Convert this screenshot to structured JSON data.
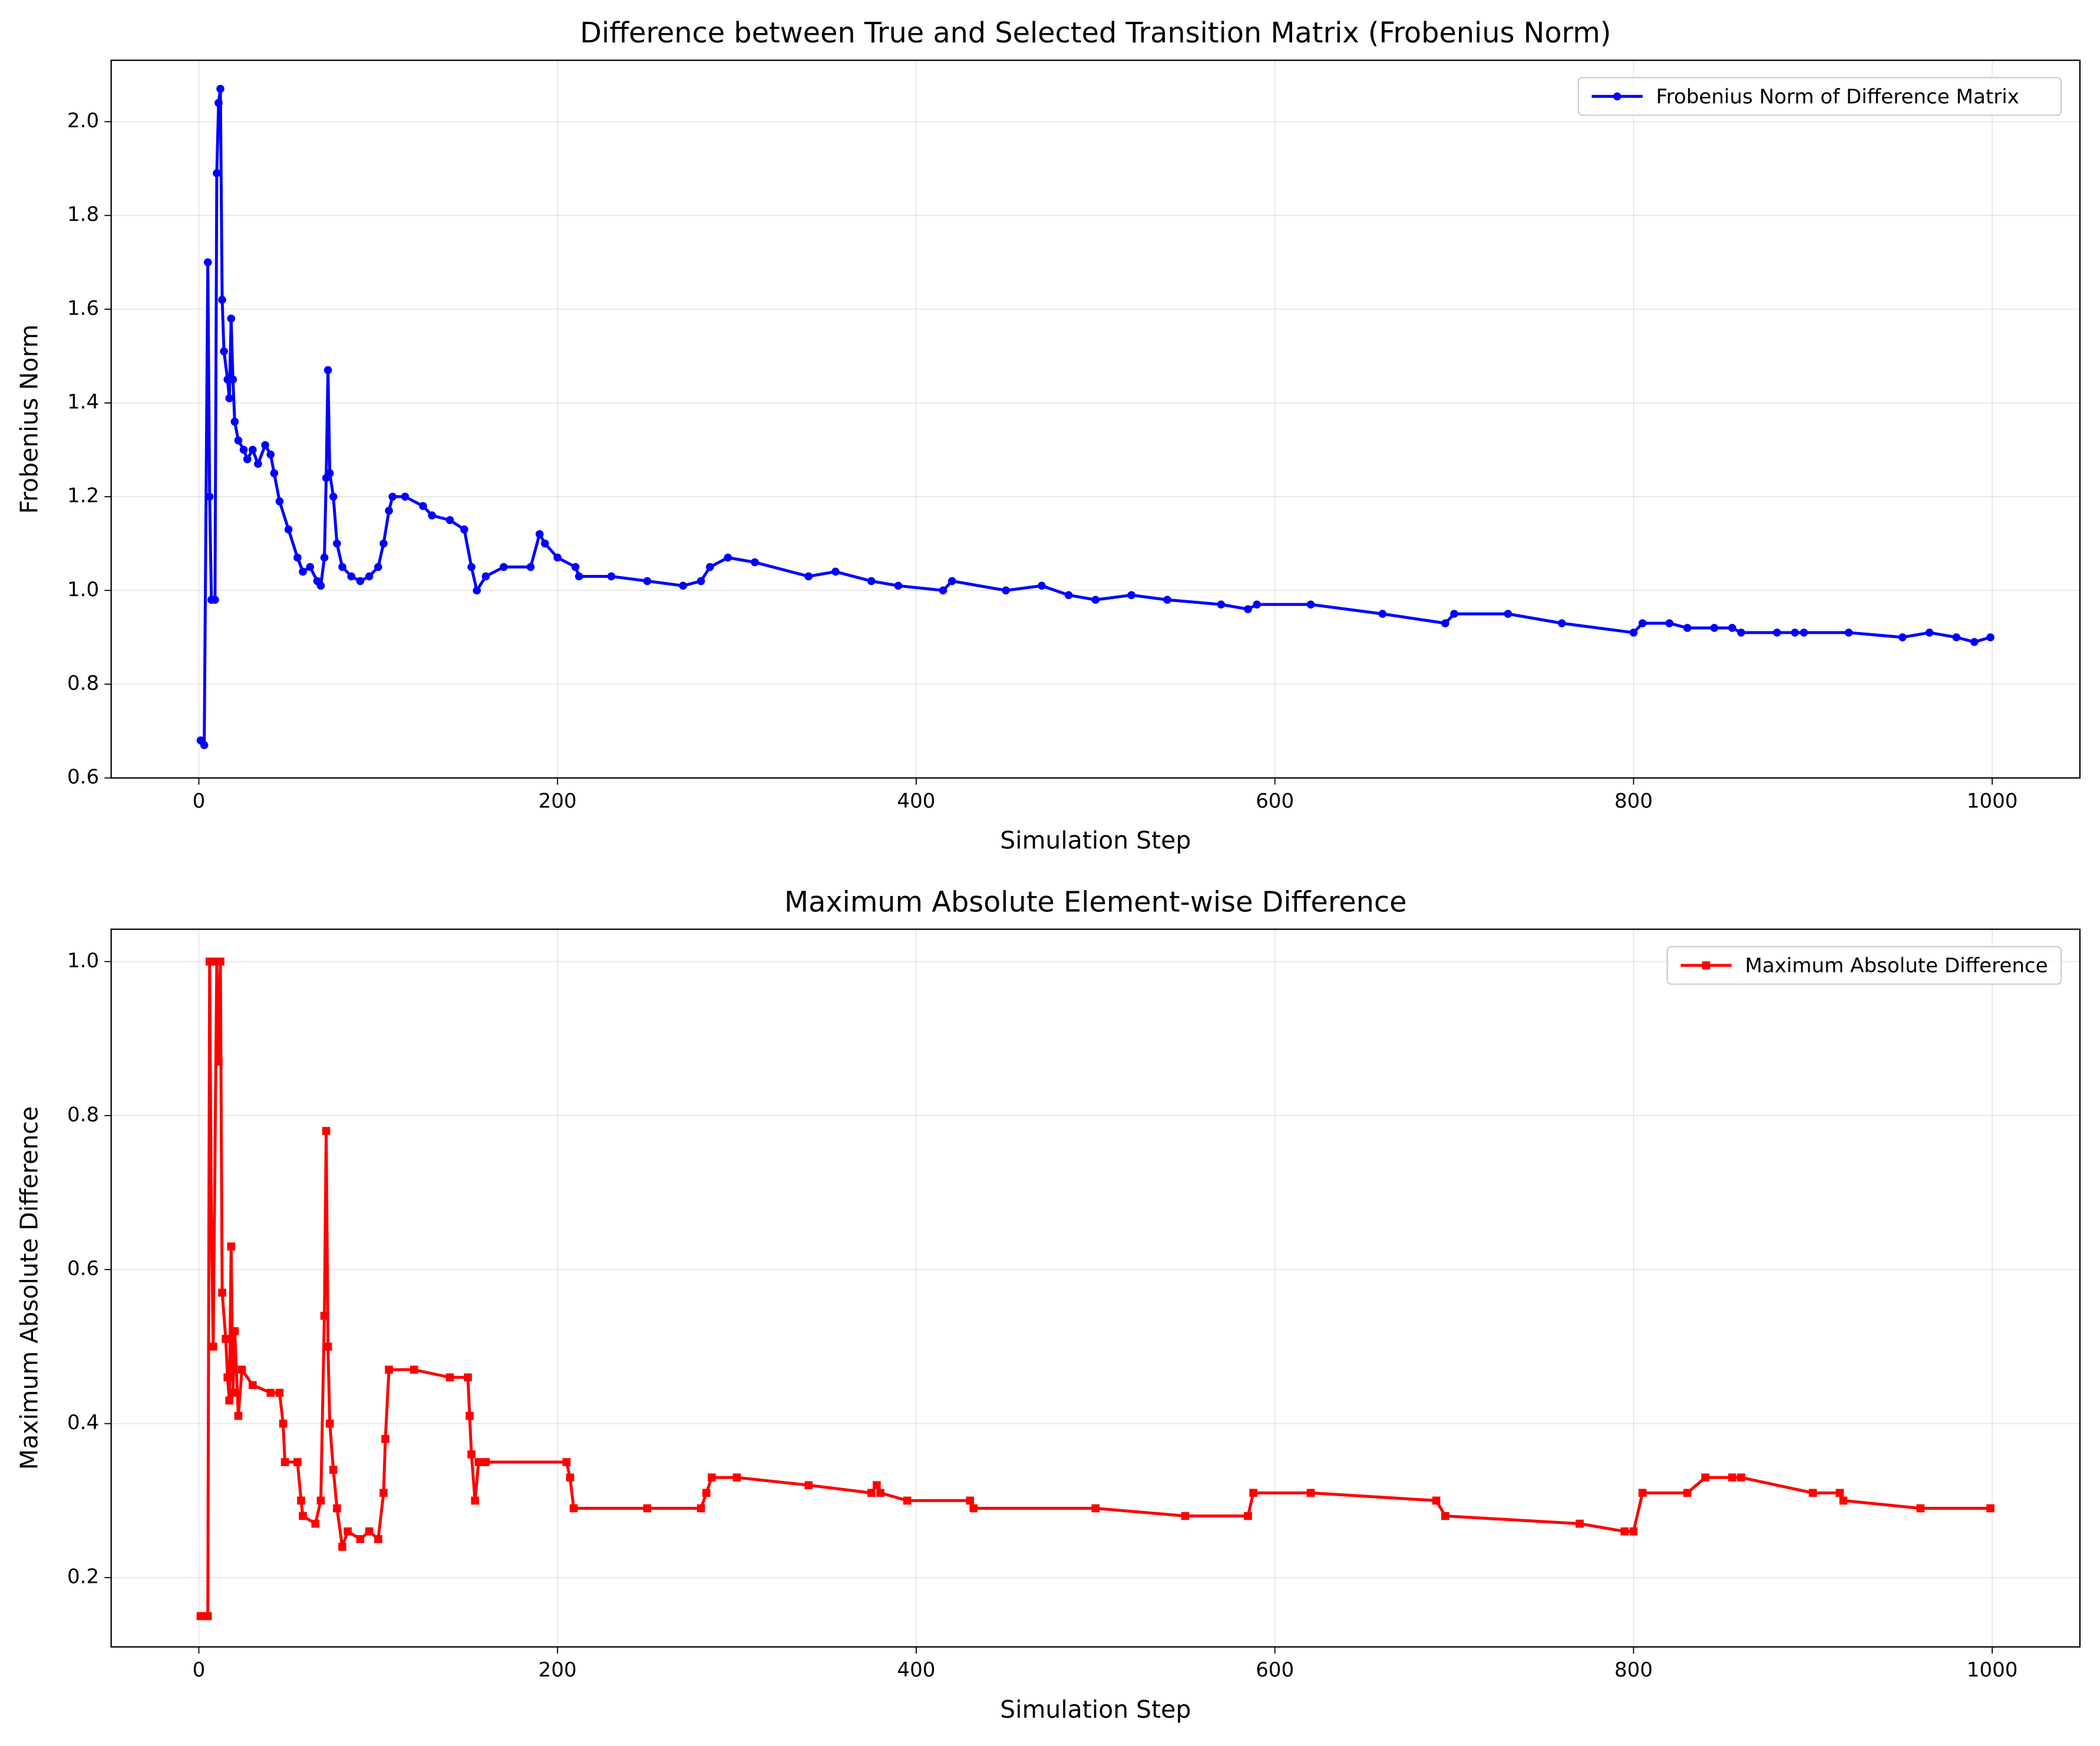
{
  "chart_data": [
    {
      "type": "line",
      "title": "Difference between True and Selected Transition Matrix (Frobenius Norm)",
      "x_label": "Simulation Step",
      "y_label": "Frobenius Norm",
      "xlim": [
        -48.9,
        1048.9
      ],
      "xticks": [
        0,
        200,
        400,
        600,
        800,
        1000
      ],
      "ylim": [
        0.6,
        2.131
      ],
      "yticks": [
        0.6,
        0.8,
        {
          "value": 1,
          "label": "1.0"
        },
        1.2,
        1.4,
        1.6,
        1.8,
        {
          "value": 2,
          "label": "2.0"
        }
      ],
      "grid": true,
      "legend": "upper right",
      "series": [
        {
          "name": "Frobenius Norm of Difference Matrix",
          "color": "#0000ff",
          "marker": "circle",
          "x": [
            1,
            3,
            5,
            6,
            7,
            9,
            10,
            11,
            12,
            13,
            14,
            16,
            17,
            18,
            19,
            20,
            22,
            25,
            27,
            30,
            33,
            37,
            40,
            42,
            45,
            50,
            55,
            58,
            62,
            66,
            68,
            70,
            71,
            72,
            73,
            75,
            77,
            80,
            85,
            90,
            95,
            100,
            103,
            106,
            108,
            115,
            125,
            130,
            140,
            148,
            152,
            155,
            160,
            170,
            185,
            190,
            193,
            200,
            210,
            212,
            230,
            250,
            270,
            280,
            285,
            295,
            310,
            340,
            355,
            375,
            390,
            415,
            420,
            450,
            470,
            485,
            500,
            520,
            540,
            570,
            585,
            590,
            620,
            660,
            695,
            700,
            730,
            760,
            800,
            805,
            820,
            830,
            845,
            855,
            860,
            880,
            890,
            895,
            920,
            950,
            965,
            980,
            990,
            999
          ],
          "values": [
            0.68,
            0.67,
            1.7,
            1.2,
            0.98,
            0.98,
            1.89,
            2.04,
            2.07,
            1.62,
            1.51,
            1.45,
            1.41,
            1.58,
            1.45,
            1.36,
            1.32,
            1.3,
            1.28,
            1.3,
            1.27,
            1.31,
            1.29,
            1.25,
            1.19,
            1.13,
            1.07,
            1.04,
            1.05,
            1.02,
            1.01,
            1.07,
            1.24,
            1.47,
            1.25,
            1.2,
            1.1,
            1.05,
            1.03,
            1.02,
            1.03,
            1.05,
            1.1,
            1.17,
            1.2,
            1.2,
            1.18,
            1.16,
            1.15,
            1.13,
            1.05,
            1.0,
            1.03,
            1.05,
            1.05,
            1.12,
            1.1,
            1.07,
            1.05,
            1.03,
            1.03,
            1.02,
            1.01,
            1.02,
            1.05,
            1.07,
            1.06,
            1.03,
            1.04,
            1.02,
            1.01,
            1.0,
            1.02,
            1.0,
            1.01,
            0.99,
            0.98,
            0.99,
            0.98,
            0.97,
            0.96,
            0.97,
            0.97,
            0.95,
            0.93,
            0.95,
            0.95,
            0.93,
            0.91,
            0.93,
            0.93,
            0.92,
            0.92,
            0.92,
            0.91,
            0.91,
            0.91,
            0.91,
            0.91,
            0.9,
            0.91,
            0.9,
            0.89,
            0.9
          ]
        }
      ]
    },
    {
      "type": "line",
      "title": "Maximum Absolute Element-wise Difference",
      "x_label": "Simulation Step",
      "y_label": "Maximum Absolute Difference",
      "xlim": [
        -48.9,
        1048.9
      ],
      "xticks": [
        0,
        200,
        400,
        600,
        800,
        1000
      ],
      "ylim": [
        0.11,
        1.042
      ],
      "yticks": [
        0.2,
        0.4,
        0.6,
        0.8,
        {
          "value": 1,
          "label": "1.0"
        }
      ],
      "grid": true,
      "legend": "upper right",
      "series": [
        {
          "name": "Maximum Absolute Difference",
          "color": "#ff0000",
          "marker": "square",
          "x": [
            1,
            5,
            6,
            7,
            8,
            10,
            11,
            12,
            13,
            15,
            16,
            17,
            18,
            19,
            20,
            22,
            24,
            30,
            40,
            45,
            47,
            48,
            55,
            57,
            58,
            65,
            68,
            70,
            71,
            72,
            73,
            75,
            77,
            80,
            83,
            90,
            95,
            100,
            103,
            104,
            106,
            120,
            140,
            150,
            151,
            152,
            154,
            156,
            160,
            205,
            207,
            209,
            250,
            280,
            283,
            286,
            300,
            340,
            375,
            378,
            380,
            395,
            430,
            432,
            500,
            550,
            585,
            588,
            620,
            690,
            695,
            770,
            795,
            800,
            805,
            830,
            840,
            855,
            860,
            900,
            915,
            917,
            960,
            999
          ],
          "values": [
            0.15,
            0.15,
            1.0,
            0.66,
            0.5,
            1.0,
            0.87,
            1.0,
            0.57,
            0.51,
            0.46,
            0.43,
            0.63,
            0.44,
            0.52,
            0.41,
            0.47,
            0.45,
            0.44,
            0.44,
            0.4,
            0.35,
            0.35,
            0.3,
            0.28,
            0.27,
            0.3,
            0.54,
            0.78,
            0.5,
            0.4,
            0.34,
            0.29,
            0.24,
            0.26,
            0.25,
            0.26,
            0.25,
            0.31,
            0.38,
            0.47,
            0.47,
            0.46,
            0.46,
            0.41,
            0.36,
            0.3,
            0.35,
            0.35,
            0.35,
            0.33,
            0.29,
            0.29,
            0.29,
            0.31,
            0.33,
            0.33,
            0.32,
            0.31,
            0.32,
            0.31,
            0.3,
            0.3,
            0.29,
            0.29,
            0.28,
            0.28,
            0.31,
            0.31,
            0.3,
            0.28,
            0.27,
            0.26,
            0.26,
            0.31,
            0.31,
            0.33,
            0.33,
            0.33,
            0.31,
            0.31,
            0.3,
            0.29,
            0.29
          ]
        }
      ]
    }
  ]
}
